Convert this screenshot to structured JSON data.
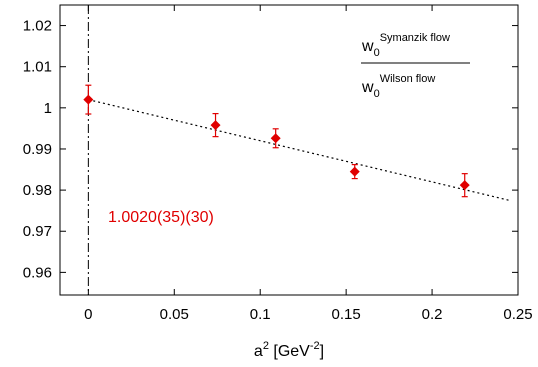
{
  "chart_data": {
    "type": "scatter",
    "xlabel": {
      "base": "a",
      "sup": "2",
      "unit_open": " [GeV",
      "unit_sup": "-2",
      "unit_close": "]"
    },
    "ylabel": "",
    "xlim": [
      -0.0165,
      0.25
    ],
    "ylim": [
      0.9545,
      1.025
    ],
    "x_ticks": [
      0,
      0.05,
      0.1,
      0.15,
      0.2,
      0.25
    ],
    "x_tick_labels": [
      "0",
      "0.05",
      "0.1",
      "0.15",
      "0.2",
      "0.25"
    ],
    "y_ticks": [
      0.96,
      0.97,
      0.98,
      0.99,
      1.0,
      1.01,
      1.02
    ],
    "y_tick_labels": [
      "0.96",
      "0.97",
      "0.98",
      "0.99",
      "1",
      "1.01",
      "1.02"
    ],
    "grid": false,
    "legend": {
      "numerator": {
        "base": "w",
        "sub": "0",
        "sup": "Symanzik flow"
      },
      "denominator": {
        "base": "w",
        "sub": "0",
        "sup": "Wilson flow"
      },
      "placement": "top-right"
    },
    "series": [
      {
        "points": [
          {
            "x": 0.0,
            "y": 1.002,
            "err": 0.0035
          },
          {
            "x": 0.074,
            "y": 0.9958,
            "err": 0.0028
          },
          {
            "x": 0.109,
            "y": 0.9926,
            "err": 0.0023
          },
          {
            "x": 0.155,
            "y": 0.9845,
            "err": 0.0017
          },
          {
            "x": 0.219,
            "y": 0.9812,
            "err": 0.0028
          }
        ],
        "color": "#e00000",
        "marker": "diamond"
      }
    ],
    "fit_line": {
      "x": [
        0.0,
        0.245
      ],
      "y": [
        1.002,
        0.9775
      ],
      "style": "dotted",
      "color": "#000000"
    },
    "vline": {
      "x": 0,
      "style": "dash-dot",
      "color": "#000000"
    },
    "annotation": {
      "text": "1.0020(35)(30)",
      "color": "#e00000"
    }
  }
}
